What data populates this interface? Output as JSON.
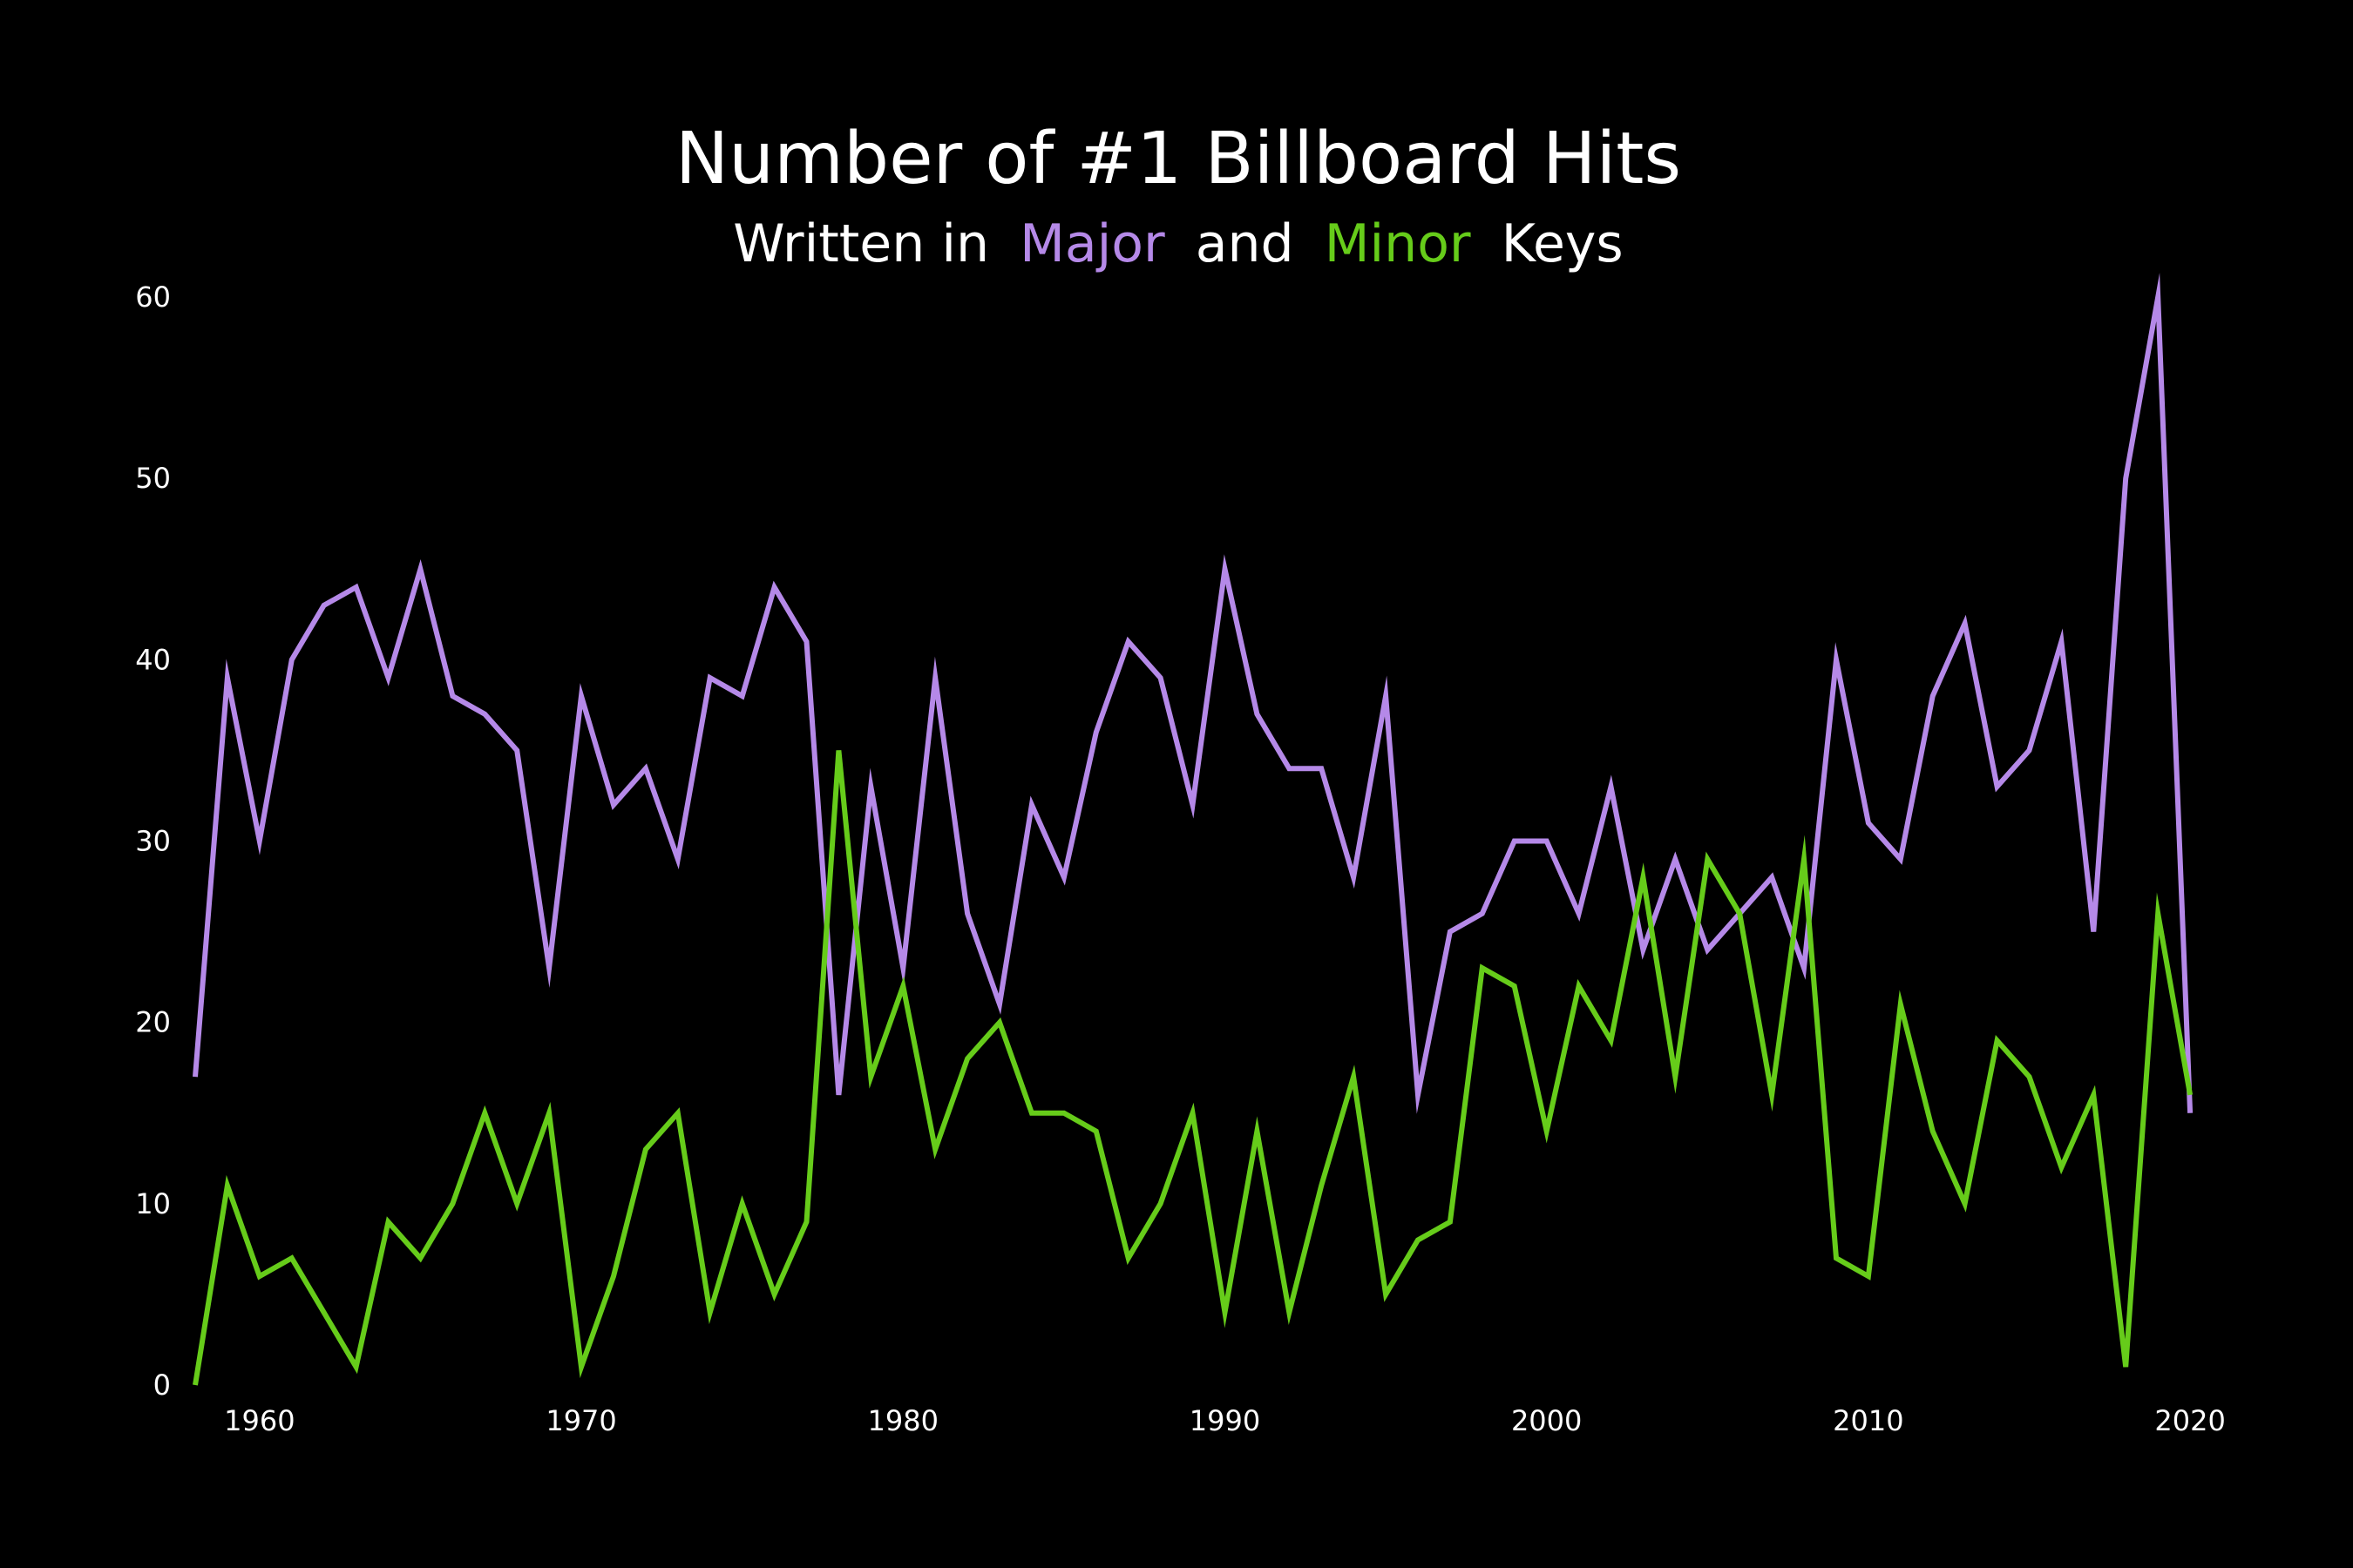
{
  "chart_data": {
    "type": "line",
    "title": "Number of #1 Billboard Hits",
    "subtitle": {
      "prefix": "Written in",
      "major_word": "Major",
      "connector": "and",
      "minor_word": "Minor",
      "suffix": "Keys"
    },
    "xlabel": "",
    "ylabel": "",
    "xlim": [
      1958,
      2021
    ],
    "ylim": [
      0,
      60
    ],
    "x_ticks": [
      "1960",
      "1970",
      "1980",
      "1990",
      "2000",
      "2010",
      "2020"
    ],
    "y_ticks": [
      "0",
      "10",
      "20",
      "30",
      "40",
      "50",
      "60"
    ],
    "grid": false,
    "legend": "none",
    "x": [
      1958,
      1959,
      1960,
      1961,
      1962,
      1963,
      1964,
      1965,
      1966,
      1967,
      1968,
      1969,
      1970,
      1971,
      1972,
      1973,
      1974,
      1975,
      1976,
      1977,
      1978,
      1979,
      1980,
      1981,
      1982,
      1983,
      1984,
      1985,
      1986,
      1987,
      1988,
      1989,
      1990,
      1991,
      1992,
      1993,
      1994,
      1995,
      1996,
      1997,
      1998,
      1999,
      2000,
      2001,
      2002,
      2003,
      2004,
      2005,
      2006,
      2007,
      2008,
      2009,
      2010,
      2011,
      2012,
      2013,
      2014,
      2015,
      2016,
      2017,
      2018,
      2019,
      2020
    ],
    "series": [
      {
        "name": "Major",
        "color": "#B589E8",
        "values": [
          17,
          39,
          30,
          40,
          43,
          44,
          39,
          45,
          38,
          37,
          35,
          23,
          38,
          32,
          34,
          29,
          39,
          38,
          44,
          41,
          16,
          33,
          23,
          39,
          26,
          21,
          32,
          28,
          36,
          41,
          39,
          32,
          45,
          37,
          34,
          34,
          28,
          38,
          16,
          25,
          26,
          30,
          30,
          26,
          33,
          24,
          29,
          24,
          26,
          28,
          23,
          40,
          31,
          29,
          38,
          42,
          33,
          35,
          41,
          25,
          50,
          60,
          15
        ]
      },
      {
        "name": "Minor",
        "color": "#66CC1A",
        "values": [
          0,
          11,
          6,
          7,
          4,
          1,
          9,
          7,
          10,
          15,
          10,
          15,
          1,
          6,
          13,
          15,
          4,
          10,
          5,
          9,
          35,
          17,
          22,
          13,
          18,
          20,
          15,
          15,
          14,
          7,
          10,
          15,
          4,
          14,
          4,
          11,
          17,
          5,
          8,
          9,
          23,
          22,
          14,
          22,
          19,
          28,
          17,
          29,
          26,
          16,
          29,
          7,
          6,
          21,
          14,
          10,
          19,
          17,
          12,
          16,
          1,
          26,
          16
        ]
      }
    ]
  }
}
